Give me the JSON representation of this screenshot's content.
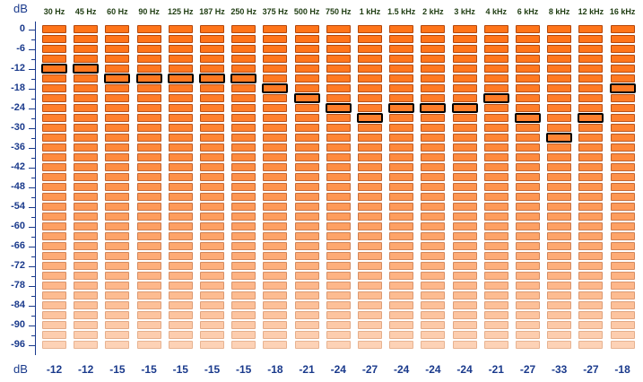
{
  "axis": {
    "top_unit": "dB",
    "bottom_unit": "dB",
    "y_tick_labels": [
      "0",
      "-6",
      "-12",
      "-18",
      "-24",
      "-30",
      "-36",
      "-42",
      "-48",
      "-54",
      "-60",
      "-66",
      "-72",
      "-78",
      "-84",
      "-90",
      "-96"
    ]
  },
  "bands": [
    {
      "freq": "30 Hz",
      "peak_db": -12,
      "reading": "-12"
    },
    {
      "freq": "45 Hz",
      "peak_db": -12,
      "reading": "-12"
    },
    {
      "freq": "60 Hz",
      "peak_db": -15,
      "reading": "-15"
    },
    {
      "freq": "90 Hz",
      "peak_db": -15,
      "reading": "-15"
    },
    {
      "freq": "125 Hz",
      "peak_db": -15,
      "reading": "-15"
    },
    {
      "freq": "187 Hz",
      "peak_db": -15,
      "reading": "-15"
    },
    {
      "freq": "250 Hz",
      "peak_db": -15,
      "reading": "-15"
    },
    {
      "freq": "375 Hz",
      "peak_db": -18,
      "reading": "-18"
    },
    {
      "freq": "500 Hz",
      "peak_db": -21,
      "reading": "-21"
    },
    {
      "freq": "750 Hz",
      "peak_db": -24,
      "reading": "-24"
    },
    {
      "freq": "1 kHz",
      "peak_db": -27,
      "reading": "-27"
    },
    {
      "freq": "1.5 kHz",
      "peak_db": -24,
      "reading": "-24"
    },
    {
      "freq": "2 kHz",
      "peak_db": -24,
      "reading": "-24"
    },
    {
      "freq": "3 kHz",
      "peak_db": -24,
      "reading": "-24"
    },
    {
      "freq": "4 kHz",
      "peak_db": -21,
      "reading": "-21"
    },
    {
      "freq": "6 kHz",
      "peak_db": -27,
      "reading": "-27"
    },
    {
      "freq": "8 kHz",
      "peak_db": -33,
      "reading": "-33"
    },
    {
      "freq": "12 kHz",
      "peak_db": -27,
      "reading": "-27"
    },
    {
      "freq": "16 kHz",
      "peak_db": -18,
      "reading": "-18"
    }
  ],
  "meter": {
    "segment_count": 33,
    "db_per_segment": 3,
    "colors": {
      "segment_top": "#ff7419",
      "segment_bottom": "#fdd2b6",
      "segment_border_top": "#b4460a",
      "segment_border_bottom": "#e7b392",
      "peak_outline": "#000000",
      "axis_text": "#1a3a8c",
      "freq_text": "#1f3d12"
    }
  }
}
